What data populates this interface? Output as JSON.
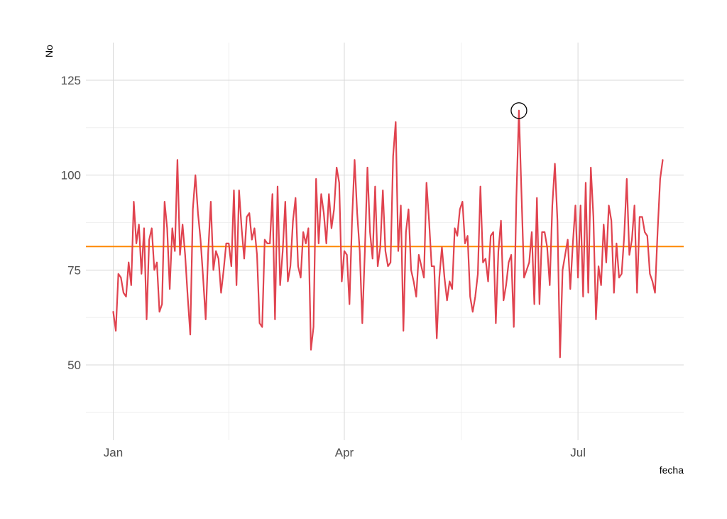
{
  "chart_data": {
    "type": "line",
    "title": "",
    "xlabel": "fecha",
    "ylabel": "No",
    "x_start": "Jan",
    "x_ticks": [
      {
        "label": "Jan",
        "day": 0
      },
      {
        "label": "Apr",
        "day": 90
      },
      {
        "label": "Jul",
        "day": 181
      }
    ],
    "xlim": [
      -10,
      222
    ],
    "ylim": [
      32,
      135
    ],
    "y_ticks": [
      50,
      75,
      100,
      125
    ],
    "y_minor_ticks": [
      37.5,
      62.5,
      87.5,
      112.5
    ],
    "grid": true,
    "legend": "none",
    "series": [
      {
        "color": "#e0434f",
        "values": [
          64,
          59,
          74,
          73,
          69,
          68,
          77,
          71,
          93,
          82,
          87,
          74,
          86,
          62,
          83,
          86,
          75,
          77,
          64,
          66,
          93,
          86,
          70,
          86,
          80,
          104,
          79,
          87,
          79,
          68,
          58,
          91,
          100,
          90,
          83,
          73,
          62,
          80,
          93,
          75,
          80,
          78,
          69,
          75,
          82,
          82,
          76,
          96,
          71,
          96,
          86,
          78,
          89,
          90,
          83,
          86,
          79,
          61,
          60,
          83,
          82,
          82,
          95,
          62,
          97,
          71,
          80,
          93,
          72,
          76,
          88,
          94,
          76,
          73,
          85,
          82,
          86,
          54,
          60,
          99,
          82,
          95,
          90,
          82,
          95,
          86,
          91,
          102,
          98,
          72,
          80,
          79,
          66,
          88,
          104,
          90,
          80,
          61,
          80,
          102,
          85,
          78,
          97,
          76,
          81,
          96,
          80,
          76,
          77,
          105,
          114,
          80,
          92,
          59,
          85,
          91,
          75,
          72,
          68,
          79,
          76,
          73,
          98,
          88,
          76,
          76,
          57,
          73,
          81,
          73,
          67,
          72,
          70,
          86,
          84,
          91,
          93,
          82,
          84,
          68,
          64,
          68,
          74,
          97,
          77,
          78,
          72,
          84,
          85,
          61,
          80,
          88,
          67,
          71,
          77,
          79,
          60,
          94,
          117,
          95,
          73,
          75,
          77,
          85,
          66,
          94,
          66,
          85,
          85,
          81,
          71,
          92,
          103,
          88,
          52,
          75,
          79,
          83,
          70,
          82,
          92,
          73,
          92,
          68,
          98,
          69,
          102,
          89,
          62,
          76,
          71,
          87,
          77,
          92,
          88,
          69,
          82,
          73,
          74,
          84,
          99,
          79,
          83,
          92,
          69,
          89,
          89,
          85,
          84,
          74,
          72,
          69,
          85,
          99,
          104
        ]
      }
    ],
    "reference_line": {
      "y": 81.2,
      "color": "#ff8c00"
    },
    "highlight": {
      "day": 158,
      "y": 117
    }
  }
}
